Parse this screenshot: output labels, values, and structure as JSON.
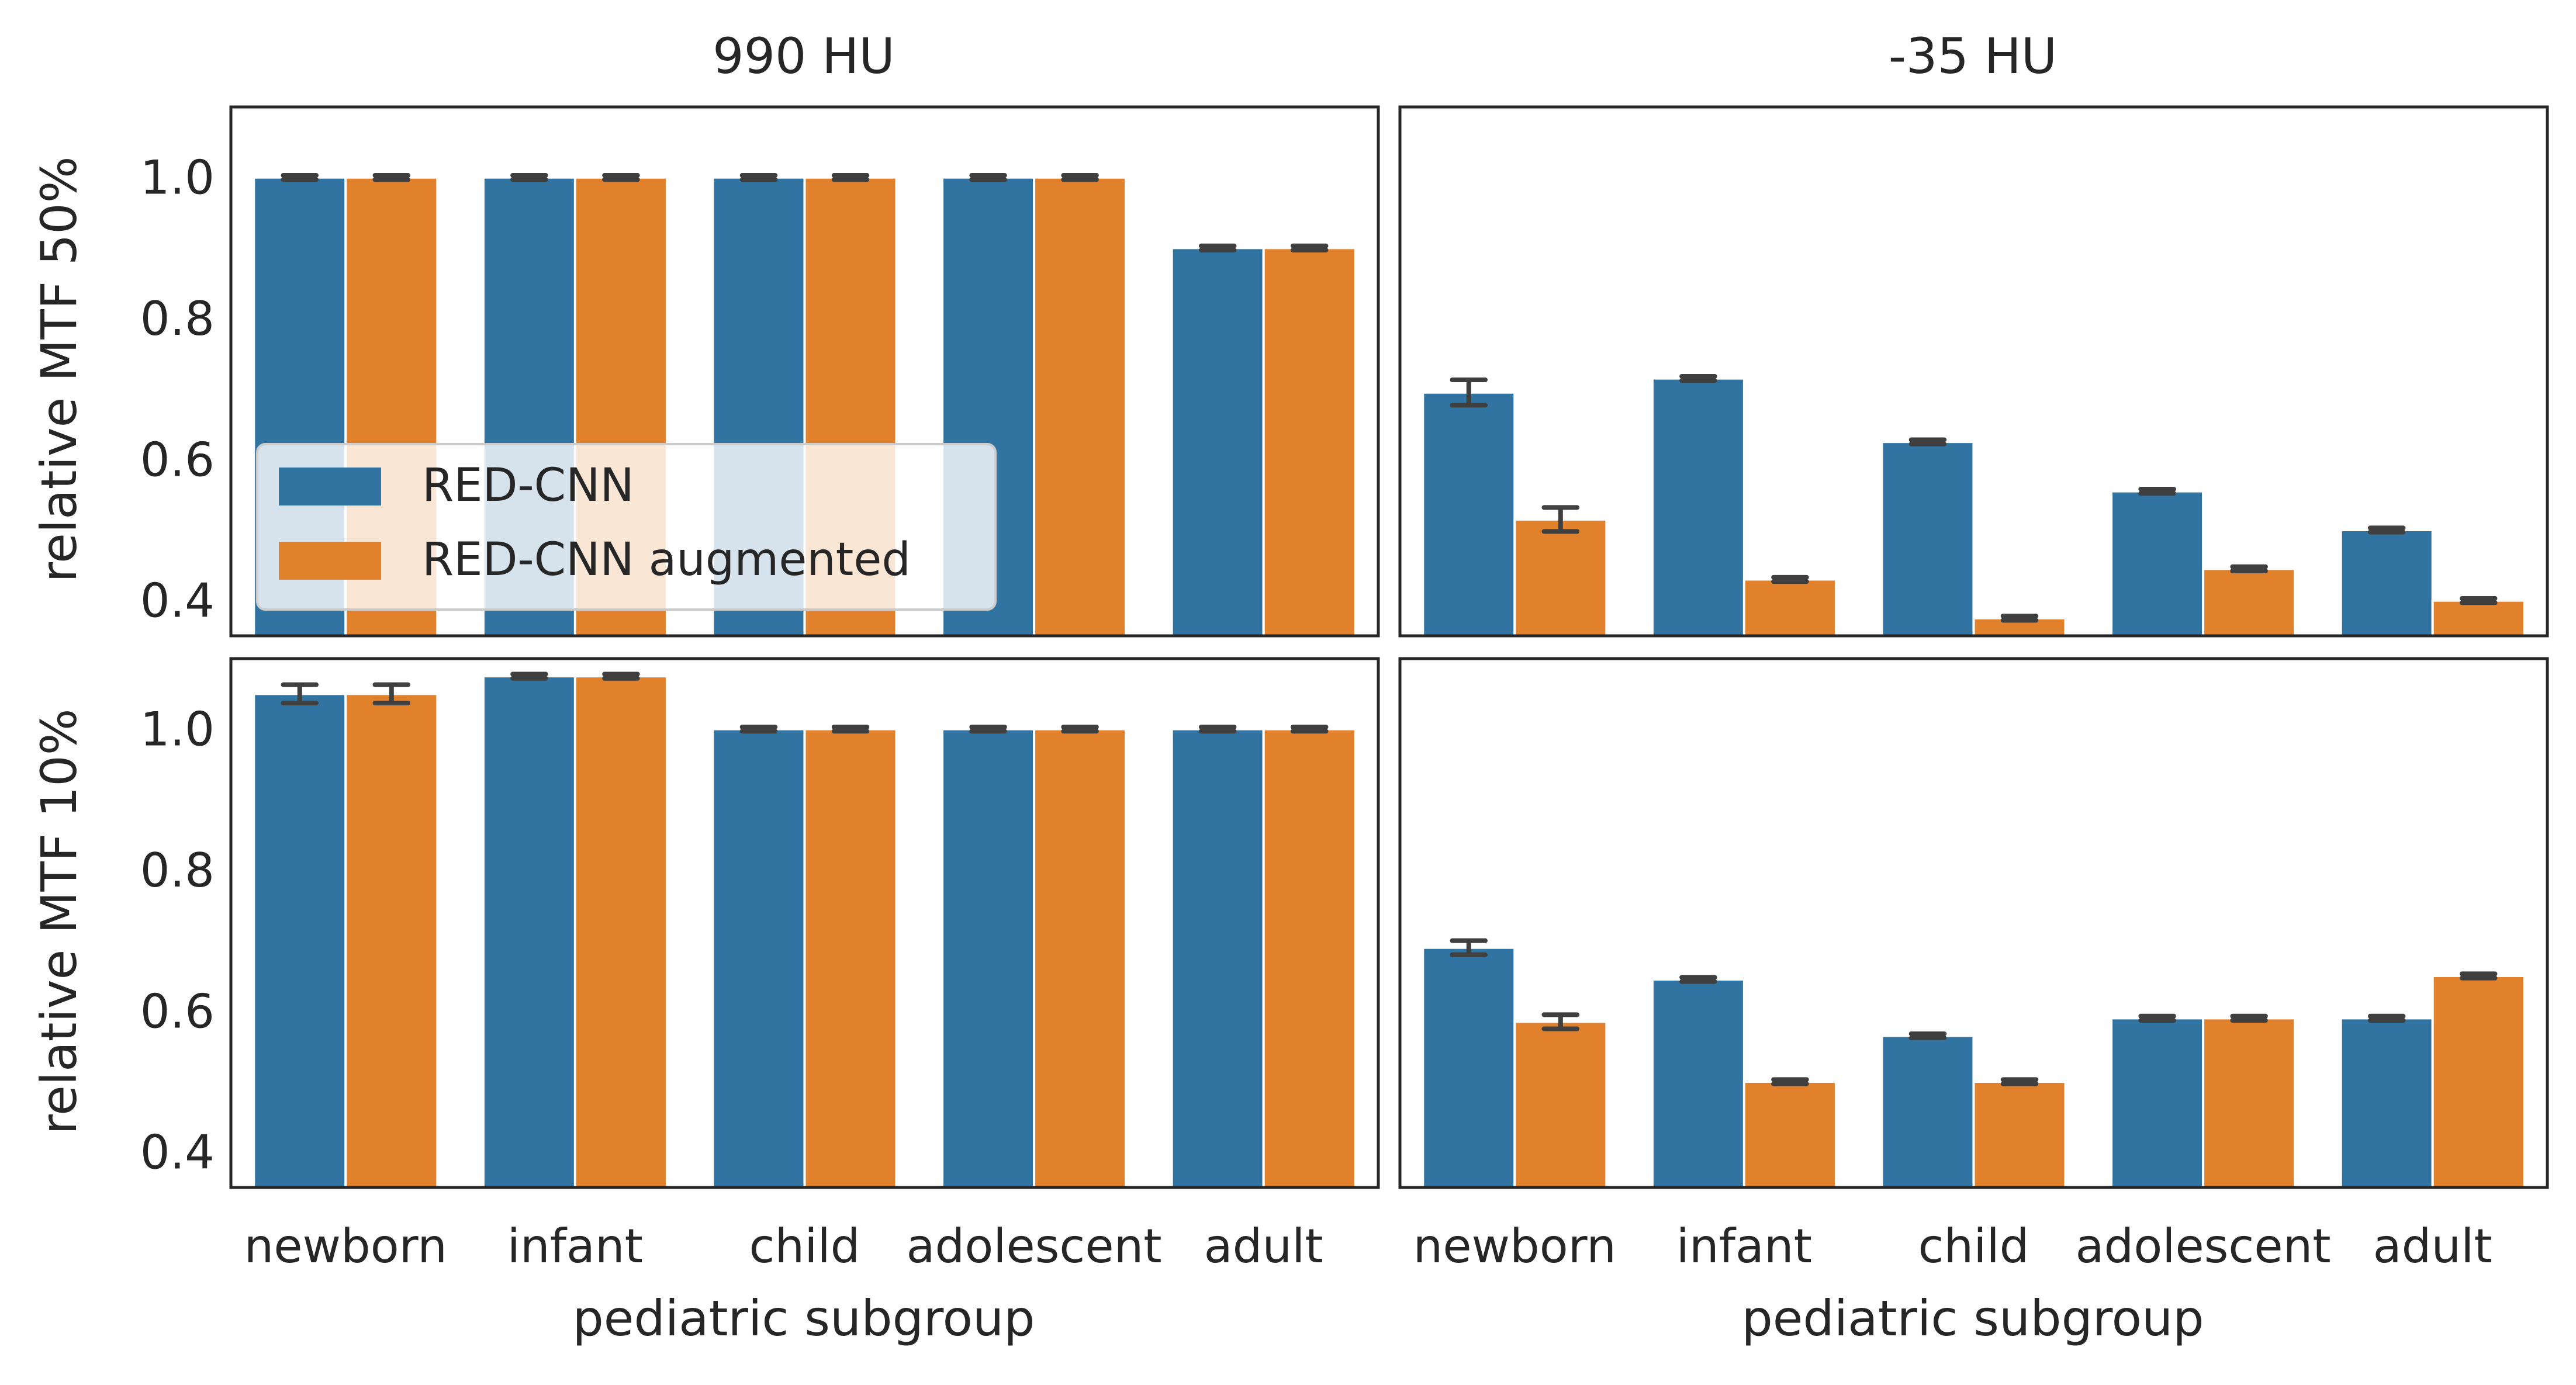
{
  "figure": {
    "row_labels": [
      "relative MTF 50%",
      "relative MTF 10%"
    ],
    "column_titles": [
      "990 HU",
      "-35 HU"
    ],
    "xlabel": "pediatric subgroup",
    "legend": {
      "placement": "lower-left of top-left panel",
      "entries": [
        {
          "label": "RED-CNN",
          "color": "#3274a1"
        },
        {
          "label": "RED-CNN augmented",
          "color": "#e1812c"
        }
      ]
    },
    "colors": {
      "series_0": "#3274a1",
      "series_1": "#e1812c",
      "errorbar": "#3f3f3f",
      "axes": "#262626"
    }
  },
  "chart_data": [
    {
      "type": "bar",
      "title": "990 HU",
      "xlabel": "",
      "ylabel": "relative MTF 50%",
      "ylim": [
        0.35,
        1.1
      ],
      "yticks": [
        0.4,
        0.6,
        0.8,
        1.0
      ],
      "ytick_labels": [
        "0.4",
        "0.6",
        "0.8",
        "1.0"
      ],
      "categories": [
        "newborn",
        "infant",
        "child",
        "adolescent",
        "adult"
      ],
      "series": [
        {
          "name": "RED-CNN",
          "values": [
            1.0,
            1.0,
            1.0,
            1.0,
            0.9
          ],
          "err": [
            0.003,
            0.003,
            0.003,
            0.003,
            0.003
          ]
        },
        {
          "name": "RED-CNN augmented",
          "values": [
            1.0,
            1.0,
            1.0,
            1.0,
            0.9
          ],
          "err": [
            0.003,
            0.003,
            0.003,
            0.003,
            0.003
          ]
        }
      ]
    },
    {
      "type": "bar",
      "title": "-35 HU",
      "xlabel": "",
      "ylabel": "",
      "ylim": [
        0.35,
        1.1
      ],
      "categories": [
        "newborn",
        "infant",
        "child",
        "adolescent",
        "adult"
      ],
      "series": [
        {
          "name": "RED-CNN",
          "values": [
            0.695,
            0.715,
            0.625,
            0.555,
            0.5
          ],
          "err": [
            0.018,
            0.003,
            0.003,
            0.003,
            0.003
          ]
        },
        {
          "name": "RED-CNN augmented",
          "values": [
            0.515,
            0.43,
            0.375,
            0.445,
            0.4
          ],
          "err": [
            0.017,
            0.003,
            0.003,
            0.003,
            0.003
          ]
        }
      ]
    },
    {
      "type": "bar",
      "title": "",
      "xlabel": "pediatric subgroup",
      "ylabel": "relative MTF 10%",
      "ylim": [
        0.35,
        1.1
      ],
      "yticks": [
        0.4,
        0.6,
        0.8,
        1.0
      ],
      "ytick_labels": [
        "0.4",
        "0.6",
        "0.8",
        "1.0"
      ],
      "categories": [
        "newborn",
        "infant",
        "child",
        "adolescent",
        "adult"
      ],
      "series": [
        {
          "name": "RED-CNN",
          "values": [
            1.05,
            1.075,
            1.0,
            1.0,
            1.0
          ],
          "err": [
            0.013,
            0.003,
            0.003,
            0.003,
            0.003
          ]
        },
        {
          "name": "RED-CNN augmented",
          "values": [
            1.05,
            1.075,
            1.0,
            1.0,
            1.0
          ],
          "err": [
            0.013,
            0.003,
            0.003,
            0.003,
            0.003
          ]
        }
      ]
    },
    {
      "type": "bar",
      "title": "",
      "xlabel": "pediatric subgroup",
      "ylabel": "",
      "ylim": [
        0.35,
        1.1
      ],
      "categories": [
        "newborn",
        "infant",
        "child",
        "adolescent",
        "adult"
      ],
      "series": [
        {
          "name": "RED-CNN",
          "values": [
            0.69,
            0.645,
            0.565,
            0.59,
            0.59
          ],
          "err": [
            0.01,
            0.003,
            0.003,
            0.003,
            0.003
          ]
        },
        {
          "name": "RED-CNN augmented",
          "values": [
            0.585,
            0.5,
            0.5,
            0.59,
            0.65
          ],
          "err": [
            0.01,
            0.003,
            0.003,
            0.003,
            0.003
          ]
        }
      ]
    }
  ]
}
